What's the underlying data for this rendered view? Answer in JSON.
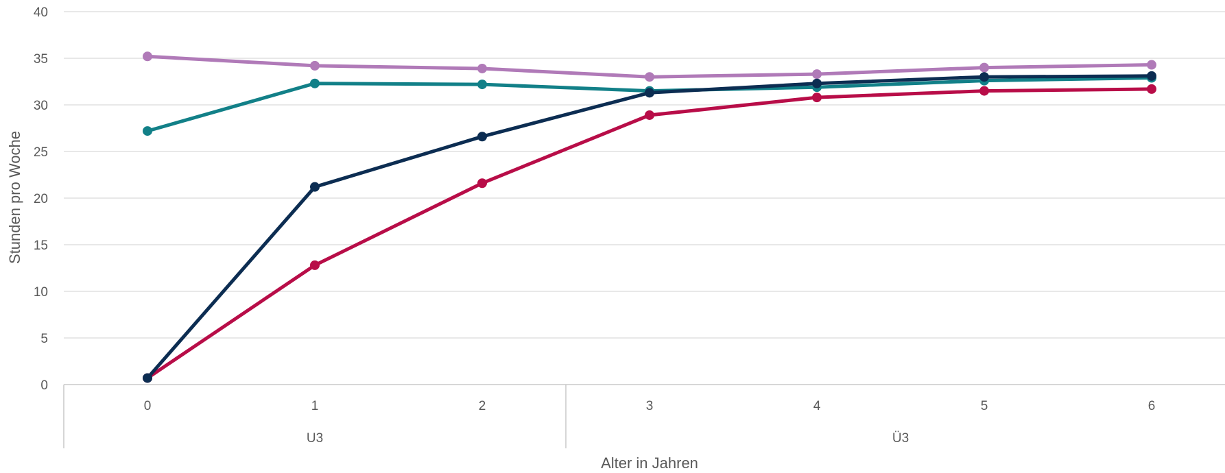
{
  "chart_data": {
    "type": "line",
    "title": "",
    "xlabel": "Alter in Jahren",
    "ylabel": "Stunden pro Woche",
    "ylim": [
      0,
      40
    ],
    "yticks": [
      0,
      5,
      10,
      15,
      20,
      25,
      30,
      35,
      40
    ],
    "categories": [
      "0",
      "1",
      "2",
      "3",
      "4",
      "5",
      "6"
    ],
    "groups": [
      {
        "label": "U3",
        "categories": [
          "0",
          "1",
          "2"
        ]
      },
      {
        "label": "Ü3",
        "categories": [
          "3",
          "4",
          "5",
          "6"
        ]
      }
    ],
    "grid": true,
    "series": [
      {
        "color": "#b07ab8",
        "values": [
          35.2,
          34.2,
          33.9,
          33.0,
          33.3,
          34.0,
          34.3
        ]
      },
      {
        "color": "#128088",
        "values": [
          27.2,
          32.3,
          32.2,
          31.5,
          31.9,
          32.6,
          32.9
        ]
      },
      {
        "color": "#b80d48",
        "values": [
          0.7,
          12.8,
          21.6,
          28.9,
          30.8,
          31.5,
          31.7
        ]
      },
      {
        "color": "#0c2d52",
        "values": [
          0.7,
          21.2,
          26.6,
          31.3,
          32.3,
          33.0,
          33.1
        ]
      }
    ]
  }
}
